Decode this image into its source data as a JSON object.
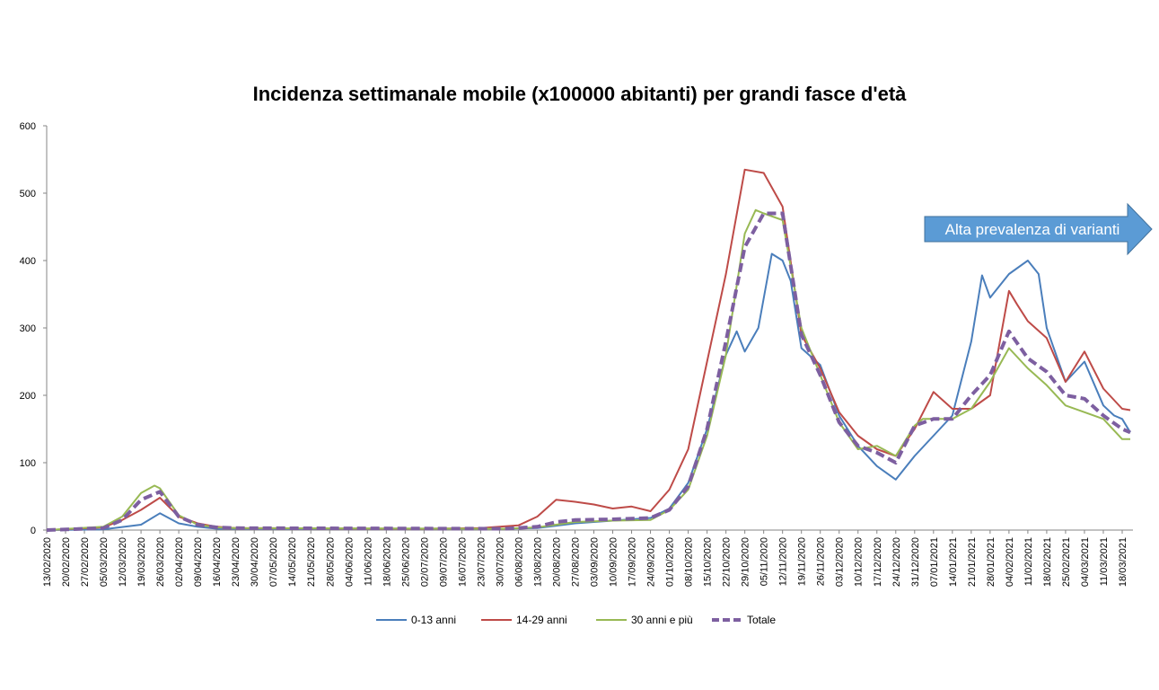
{
  "chart_data": {
    "type": "line",
    "title": "Incidenza settimanale mobile (x100000 abitanti) per grandi fasce d'età",
    "xlabel": "",
    "ylabel": "",
    "ylim": [
      0,
      600
    ],
    "y_ticks": [
      0,
      100,
      200,
      300,
      400,
      500,
      600
    ],
    "x_start": "13/02/2020",
    "x_end": "22/03/2021",
    "x_tick_labels": [
      "13/02/2020",
      "20/02/2020",
      "27/02/2020",
      "05/03/2020",
      "12/03/2020",
      "19/03/2020",
      "26/03/2020",
      "02/04/2020",
      "09/04/2020",
      "16/04/2020",
      "23/04/2020",
      "30/04/2020",
      "07/05/2020",
      "14/05/2020",
      "21/05/2020",
      "28/05/2020",
      "04/06/2020",
      "11/06/2020",
      "18/06/2020",
      "25/06/2020",
      "02/07/2020",
      "09/07/2020",
      "16/07/2020",
      "23/07/2020",
      "30/07/2020",
      "06/08/2020",
      "13/08/2020",
      "20/08/2020",
      "27/08/2020",
      "03/09/2020",
      "10/09/2020",
      "17/09/2020",
      "24/09/2020",
      "01/10/2020",
      "08/10/2020",
      "15/10/2020",
      "22/10/2020",
      "29/10/2020",
      "05/11/2020",
      "12/11/2020",
      "19/11/2020",
      "26/11/2020",
      "03/12/2020",
      "10/12/2020",
      "17/12/2020",
      "24/12/2020",
      "31/12/2020",
      "07/01/2021",
      "14/01/2021",
      "21/01/2021",
      "28/01/2021",
      "04/02/2021",
      "11/02/2021",
      "18/02/2021",
      "25/02/2021",
      "04/03/2021",
      "11/03/2021",
      "18/03/2021"
    ],
    "grid": false,
    "legend_position": "bottom",
    "series": [
      {
        "name": "0-13 anni",
        "color": "#4a7ebb",
        "dashed": false,
        "points": [
          [
            "13/02/2020",
            0
          ],
          [
            "05/03/2020",
            1
          ],
          [
            "19/03/2020",
            8
          ],
          [
            "26/03/2020",
            25
          ],
          [
            "02/04/2020",
            10
          ],
          [
            "09/04/2020",
            5
          ],
          [
            "16/04/2020",
            2
          ],
          [
            "01/08/2020",
            2
          ],
          [
            "13/08/2020",
            3
          ],
          [
            "27/08/2020",
            10
          ],
          [
            "10/09/2020",
            14
          ],
          [
            "24/09/2020",
            18
          ],
          [
            "01/10/2020",
            32
          ],
          [
            "08/10/2020",
            70
          ],
          [
            "15/10/2020",
            150
          ],
          [
            "22/10/2020",
            260
          ],
          [
            "26/10/2020",
            295
          ],
          [
            "29/10/2020",
            265
          ],
          [
            "03/11/2020",
            300
          ],
          [
            "08/11/2020",
            410
          ],
          [
            "12/11/2020",
            400
          ],
          [
            "15/11/2020",
            370
          ],
          [
            "19/11/2020",
            270
          ],
          [
            "26/11/2020",
            245
          ],
          [
            "03/12/2020",
            170
          ],
          [
            "10/12/2020",
            125
          ],
          [
            "17/12/2020",
            95
          ],
          [
            "24/12/2020",
            75
          ],
          [
            "31/12/2020",
            110
          ],
          [
            "07/01/2021",
            140
          ],
          [
            "14/01/2021",
            170
          ],
          [
            "21/01/2021",
            280
          ],
          [
            "25/01/2021",
            378
          ],
          [
            "28/01/2021",
            345
          ],
          [
            "04/02/2021",
            380
          ],
          [
            "11/02/2021",
            400
          ],
          [
            "15/02/2021",
            380
          ],
          [
            "18/02/2021",
            300
          ],
          [
            "25/02/2021",
            220
          ],
          [
            "04/03/2021",
            250
          ],
          [
            "11/03/2021",
            185
          ],
          [
            "15/03/2021",
            170
          ],
          [
            "18/03/2021",
            165
          ],
          [
            "21/03/2021",
            145
          ]
        ]
      },
      {
        "name": "14-29 anni",
        "color": "#be4b48",
        "dashed": false,
        "points": [
          [
            "13/02/2020",
            0
          ],
          [
            "05/03/2020",
            4
          ],
          [
            "12/03/2020",
            15
          ],
          [
            "19/03/2020",
            30
          ],
          [
            "26/03/2020",
            48
          ],
          [
            "02/04/2020",
            20
          ],
          [
            "09/04/2020",
            10
          ],
          [
            "16/04/2020",
            5
          ],
          [
            "23/04/2020",
            3
          ],
          [
            "01/07/2020",
            2
          ],
          [
            "23/07/2020",
            3
          ],
          [
            "06/08/2020",
            7
          ],
          [
            "13/08/2020",
            20
          ],
          [
            "20/08/2020",
            45
          ],
          [
            "27/08/2020",
            42
          ],
          [
            "03/09/2020",
            38
          ],
          [
            "10/09/2020",
            32
          ],
          [
            "17/09/2020",
            35
          ],
          [
            "24/09/2020",
            28
          ],
          [
            "01/10/2020",
            60
          ],
          [
            "08/10/2020",
            120
          ],
          [
            "15/10/2020",
            250
          ],
          [
            "22/10/2020",
            380
          ],
          [
            "29/10/2020",
            535
          ],
          [
            "05/11/2020",
            530
          ],
          [
            "12/11/2020",
            480
          ],
          [
            "19/11/2020",
            290
          ],
          [
            "26/11/2020",
            240
          ],
          [
            "03/12/2020",
            175
          ],
          [
            "10/12/2020",
            140
          ],
          [
            "17/12/2020",
            120
          ],
          [
            "24/12/2020",
            110
          ],
          [
            "31/12/2020",
            150
          ],
          [
            "07/01/2021",
            205
          ],
          [
            "14/01/2021",
            180
          ],
          [
            "21/01/2021",
            180
          ],
          [
            "28/01/2021",
            200
          ],
          [
            "04/02/2021",
            355
          ],
          [
            "07/02/2021",
            335
          ],
          [
            "11/02/2021",
            310
          ],
          [
            "18/02/2021",
            285
          ],
          [
            "25/02/2021",
            220
          ],
          [
            "04/03/2021",
            265
          ],
          [
            "11/03/2021",
            210
          ],
          [
            "18/03/2021",
            180
          ],
          [
            "21/03/2021",
            178
          ]
        ]
      },
      {
        "name": "30 anni e più",
        "color": "#98b954",
        "dashed": false,
        "points": [
          [
            "13/02/2020",
            0
          ],
          [
            "05/03/2020",
            5
          ],
          [
            "12/03/2020",
            20
          ],
          [
            "19/03/2020",
            55
          ],
          [
            "24/03/2020",
            66
          ],
          [
            "26/03/2020",
            62
          ],
          [
            "02/04/2020",
            22
          ],
          [
            "09/04/2020",
            8
          ],
          [
            "16/04/2020",
            4
          ],
          [
            "23/04/2020",
            3
          ],
          [
            "01/08/2020",
            2
          ],
          [
            "13/08/2020",
            4
          ],
          [
            "20/08/2020",
            8
          ],
          [
            "27/08/2020",
            12
          ],
          [
            "10/09/2020",
            14
          ],
          [
            "24/09/2020",
            15
          ],
          [
            "01/10/2020",
            30
          ],
          [
            "08/10/2020",
            60
          ],
          [
            "15/10/2020",
            140
          ],
          [
            "22/10/2020",
            260
          ],
          [
            "29/10/2020",
            440
          ],
          [
            "02/11/2020",
            475
          ],
          [
            "05/11/2020",
            470
          ],
          [
            "12/11/2020",
            460
          ],
          [
            "19/11/2020",
            300
          ],
          [
            "26/11/2020",
            230
          ],
          [
            "03/12/2020",
            160
          ],
          [
            "10/12/2020",
            120
          ],
          [
            "17/12/2020",
            125
          ],
          [
            "24/12/2020",
            110
          ],
          [
            "31/12/2020",
            155
          ],
          [
            "03/01/2021",
            165
          ],
          [
            "07/01/2021",
            165
          ],
          [
            "14/01/2021",
            165
          ],
          [
            "21/01/2021",
            180
          ],
          [
            "28/01/2021",
            220
          ],
          [
            "04/02/2021",
            270
          ],
          [
            "11/02/2021",
            240
          ],
          [
            "18/02/2021",
            215
          ],
          [
            "25/02/2021",
            185
          ],
          [
            "04/03/2021",
            175
          ],
          [
            "11/03/2021",
            165
          ],
          [
            "18/03/2021",
            135
          ],
          [
            "21/03/2021",
            135
          ]
        ]
      },
      {
        "name": "Totale",
        "color": "#7d5fa0",
        "dashed": true,
        "points": [
          [
            "13/02/2020",
            0
          ],
          [
            "05/03/2020",
            3
          ],
          [
            "12/03/2020",
            15
          ],
          [
            "19/03/2020",
            45
          ],
          [
            "26/03/2020",
            57
          ],
          [
            "02/04/2020",
            20
          ],
          [
            "09/04/2020",
            8
          ],
          [
            "16/04/2020",
            4
          ],
          [
            "23/04/2020",
            3
          ],
          [
            "01/08/2020",
            2
          ],
          [
            "13/08/2020",
            5
          ],
          [
            "20/08/2020",
            12
          ],
          [
            "27/08/2020",
            15
          ],
          [
            "10/09/2020",
            16
          ],
          [
            "24/09/2020",
            18
          ],
          [
            "01/10/2020",
            30
          ],
          [
            "08/10/2020",
            65
          ],
          [
            "15/10/2020",
            150
          ],
          [
            "22/10/2020",
            280
          ],
          [
            "29/10/2020",
            420
          ],
          [
            "05/11/2020",
            470
          ],
          [
            "12/11/2020",
            470
          ],
          [
            "19/11/2020",
            290
          ],
          [
            "26/11/2020",
            230
          ],
          [
            "03/12/2020",
            160
          ],
          [
            "10/12/2020",
            125
          ],
          [
            "17/12/2020",
            115
          ],
          [
            "24/12/2020",
            100
          ],
          [
            "31/12/2020",
            155
          ],
          [
            "07/01/2021",
            165
          ],
          [
            "14/01/2021",
            165
          ],
          [
            "21/01/2021",
            200
          ],
          [
            "28/01/2021",
            230
          ],
          [
            "04/02/2021",
            295
          ],
          [
            "11/02/2021",
            255
          ],
          [
            "18/02/2021",
            235
          ],
          [
            "25/02/2021",
            200
          ],
          [
            "04/03/2021",
            195
          ],
          [
            "11/03/2021",
            170
          ],
          [
            "18/03/2021",
            150
          ],
          [
            "21/03/2021",
            145
          ]
        ]
      }
    ],
    "annotations": [
      {
        "text": "Alta prevalenza di varianti",
        "color": "#5b9bd5"
      }
    ]
  }
}
